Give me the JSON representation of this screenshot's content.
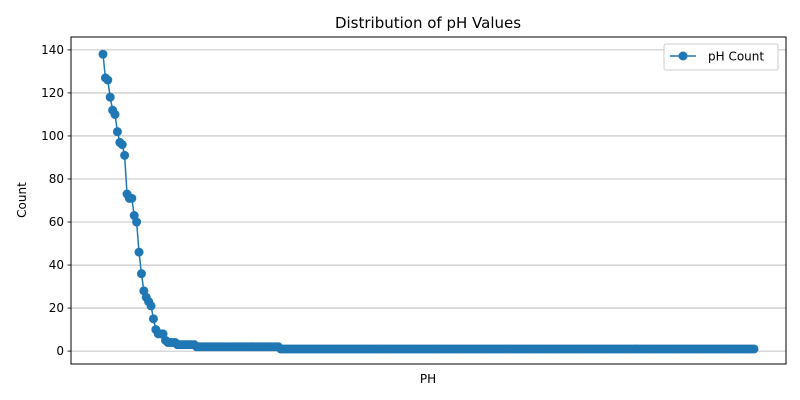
{
  "chart_data": {
    "type": "line",
    "title": "Distribution of pH Values",
    "xlabel": "PH",
    "ylabel": "Count",
    "ylim": [
      -6,
      146
    ],
    "yticks": [
      0,
      20,
      40,
      60,
      80,
      100,
      120,
      140
    ],
    "grid": "y-axis",
    "legend_position": "top-right",
    "series": [
      {
        "name": "pH Count",
        "color": "#1f77b4",
        "marker": "circle",
        "values": [
          138,
          127,
          126,
          118,
          112,
          110,
          102,
          97,
          96,
          91,
          73,
          71,
          71,
          63,
          60,
          46,
          36,
          28,
          25,
          23,
          21,
          15,
          10,
          8,
          8,
          8,
          5,
          4,
          4,
          4,
          4,
          3,
          3,
          3,
          3,
          3,
          3,
          3,
          3,
          2,
          2,
          2,
          2,
          2,
          2,
          2,
          2,
          2,
          2,
          2,
          2,
          2,
          2,
          2,
          2,
          2,
          2,
          2,
          2,
          2,
          2,
          2,
          2,
          2,
          2,
          2,
          2,
          2,
          2,
          2,
          2,
          2,
          2,
          2,
          1,
          1,
          1,
          1,
          1,
          1,
          1,
          1,
          1,
          1,
          1,
          1,
          1,
          1,
          1,
          1,
          1,
          1,
          1,
          1,
          1,
          1,
          1,
          1,
          1,
          1,
          1,
          1,
          1,
          1,
          1,
          1,
          1,
          1,
          1,
          1,
          1,
          1,
          1,
          1,
          1,
          1,
          1,
          1,
          1,
          1,
          1,
          1,
          1,
          1,
          1,
          1,
          1,
          1,
          1,
          1,
          1,
          1,
          1,
          1,
          1,
          1,
          1,
          1,
          1,
          1,
          1,
          1,
          1,
          1,
          1,
          1,
          1,
          1,
          1,
          1,
          1,
          1,
          1,
          1,
          1,
          1,
          1,
          1,
          1,
          1,
          1,
          1,
          1,
          1,
          1,
          1,
          1,
          1,
          1,
          1,
          1,
          1,
          1,
          1,
          1,
          1,
          1,
          1,
          1,
          1,
          1,
          1,
          1,
          1,
          1,
          1,
          1,
          1,
          1,
          1,
          1,
          1,
          1,
          1,
          1,
          1,
          1,
          1,
          1,
          1,
          1,
          1,
          1,
          1,
          1,
          1,
          1,
          1,
          1,
          1,
          1,
          1,
          1,
          1,
          1,
          1,
          1,
          1,
          1,
          1,
          1,
          1,
          1,
          1,
          1,
          1,
          1,
          1,
          1,
          1,
          1,
          1,
          1,
          1,
          1,
          1,
          1,
          1,
          1,
          1,
          1,
          1,
          1,
          1,
          1,
          1,
          1,
          1,
          1,
          1,
          1,
          1,
          1,
          1,
          1,
          1,
          1,
          1,
          1,
          1,
          1,
          1,
          1,
          1,
          1,
          1,
          1,
          1,
          1,
          1,
          1,
          1
        ]
      }
    ]
  }
}
